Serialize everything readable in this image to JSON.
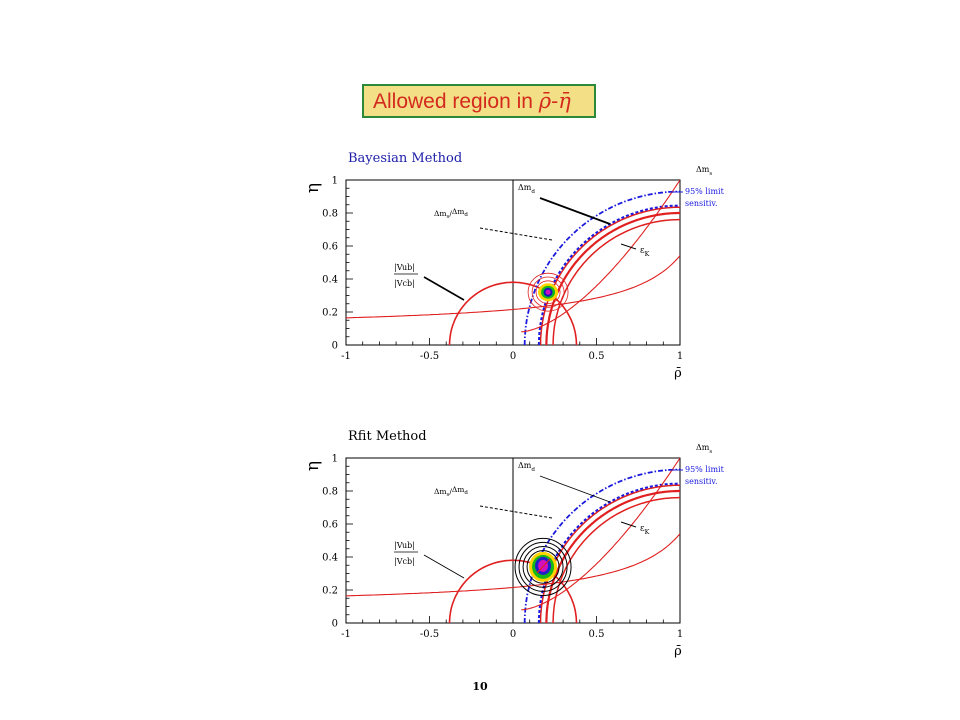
{
  "title": {
    "prefix": "Allowed region in ",
    "symbols": "ρ̄-η̄"
  },
  "page_number": "10",
  "colors": {
    "constraint_red": "#e02020",
    "limit_blue": "#1a1adf",
    "title_fill": "#f2df86",
    "title_border": "#2a8a3a",
    "title_text": "#d42a1e"
  },
  "chart_data": [
    {
      "type": "contour",
      "title": "Bayesian Method",
      "xlabel": "ρ̄",
      "ylabel": "η",
      "xlim": [
        -1,
        1
      ],
      "ylim": [
        0,
        1
      ],
      "x_ticks": [
        "-1",
        "-0.5",
        "0",
        "0.5",
        "1"
      ],
      "y_ticks": [
        "0",
        "0.2",
        "0.4",
        "0.6",
        "0.8",
        "1"
      ],
      "best_fit": {
        "rho": 0.21,
        "eta": 0.32
      },
      "contour_color": "#e02020",
      "labels": {
        "delta_ms": "Δm_s",
        "delta_md": "Δm_d",
        "ratio": "Δm_s/Δm_d",
        "vub_num": "|Vub|",
        "vub_den": "|Vcb|",
        "epsilon": "ε_K",
        "limit_line1": "95% limit",
        "limit_line2": "sensitiv."
      },
      "label_parts": {
        "delta_m": "Δm",
        "sub_s": "s",
        "sub_d": "d",
        "slash": "/",
        "eps": "ε",
        "sub_K": "K"
      }
    },
    {
      "type": "contour",
      "title": "Rfit Method",
      "xlabel": "ρ̄",
      "ylabel": "η",
      "xlim": [
        -1,
        1
      ],
      "ylim": [
        0,
        1
      ],
      "x_ticks": [
        "-1",
        "-0.5",
        "0",
        "0.5",
        "1"
      ],
      "y_ticks": [
        "0",
        "0.2",
        "0.4",
        "0.6",
        "0.8",
        "1"
      ],
      "best_fit": {
        "rho": 0.18,
        "eta": 0.34
      },
      "contour_color": "#000000",
      "labels": {
        "delta_ms": "Δm_s",
        "delta_md": "Δm_d",
        "ratio": "Δm_s/Δm_d",
        "vub_num": "|Vub|",
        "vub_den": "|Vcb|",
        "epsilon": "ε_K",
        "limit_line1": "95% limit",
        "limit_line2": "sensitiv."
      },
      "label_parts": {
        "delta_m": "Δm",
        "sub_s": "s",
        "sub_d": "d",
        "slash": "/",
        "eps": "ε",
        "sub_K": "K"
      }
    }
  ]
}
